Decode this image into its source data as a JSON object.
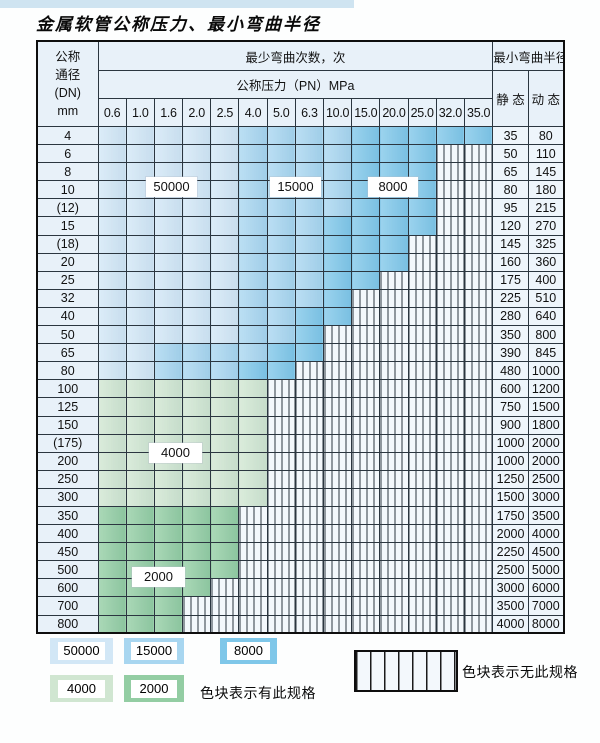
{
  "title": "金属软管公称压力、最小弯曲半径",
  "header": {
    "dn_label": "公称\n通径\n(DN)\nmm",
    "cycles_label": "最少弯曲次数，次",
    "pressure_label": "公称压力（PN）MPa",
    "radius_label": "最小弯曲半径",
    "static_label": "静 态",
    "dynamic_label": "动 态"
  },
  "chart_data": {
    "type": "heatmap",
    "title": "金属软管公称压力、最小弯曲半径",
    "xlabel": "公称压力（PN）MPa",
    "ylabel": "公称通径(DN) mm",
    "pressure_columns": [
      "0.6",
      "1.0",
      "1.6",
      "2.0",
      "2.5",
      "4.0",
      "5.0",
      "6.3",
      "10.0",
      "15.0",
      "20.0",
      "25.0",
      "32.0",
      "35.0"
    ],
    "zone_meaning": "cell zone value = 最少弯曲次数(次); none = 无此规格",
    "rows": [
      {
        "dn": "4",
        "segments": [
          [
            "z50000",
            5
          ],
          [
            "z15000",
            4
          ],
          [
            "z8000",
            5
          ]
        ],
        "static": "35",
        "dynamic": "80"
      },
      {
        "dn": "6",
        "segments": [
          [
            "z50000",
            5
          ],
          [
            "z15000",
            4
          ],
          [
            "z8000",
            3
          ],
          [
            "none",
            2
          ]
        ],
        "static": "50",
        "dynamic": "110"
      },
      {
        "dn": "8",
        "segments": [
          [
            "z50000",
            5
          ],
          [
            "z15000",
            4
          ],
          [
            "z8000",
            3
          ],
          [
            "none",
            2
          ]
        ],
        "static": "65",
        "dynamic": "145"
      },
      {
        "dn": "10",
        "segments": [
          [
            "z50000",
            5
          ],
          [
            "z15000",
            4
          ],
          [
            "z8000",
            3
          ],
          [
            "none",
            2
          ]
        ],
        "static": "80",
        "dynamic": "180"
      },
      {
        "dn": "(12)",
        "segments": [
          [
            "z50000",
            5
          ],
          [
            "z15000",
            4
          ],
          [
            "z8000",
            3
          ],
          [
            "none",
            2
          ]
        ],
        "static": "95",
        "dynamic": "215"
      },
      {
        "dn": "15",
        "segments": [
          [
            "z50000",
            5
          ],
          [
            "z15000",
            3
          ],
          [
            "z8000",
            4
          ],
          [
            "none",
            2
          ]
        ],
        "static": "120",
        "dynamic": "270"
      },
      {
        "dn": "(18)",
        "segments": [
          [
            "z50000",
            5
          ],
          [
            "z15000",
            3
          ],
          [
            "z8000",
            3
          ],
          [
            "none",
            3
          ]
        ],
        "static": "145",
        "dynamic": "325"
      },
      {
        "dn": "20",
        "segments": [
          [
            "z50000",
            5
          ],
          [
            "z15000",
            3
          ],
          [
            "z8000",
            3
          ],
          [
            "none",
            3
          ]
        ],
        "static": "160",
        "dynamic": "360"
      },
      {
        "dn": "25",
        "segments": [
          [
            "z50000",
            5
          ],
          [
            "z15000",
            3
          ],
          [
            "z8000",
            2
          ],
          [
            "none",
            4
          ]
        ],
        "static": "175",
        "dynamic": "400"
      },
      {
        "dn": "32",
        "segments": [
          [
            "z50000",
            5
          ],
          [
            "z15000",
            3
          ],
          [
            "z8000",
            1
          ],
          [
            "none",
            5
          ]
        ],
        "static": "225",
        "dynamic": "510"
      },
      {
        "dn": "40",
        "segments": [
          [
            "z50000",
            5
          ],
          [
            "z15000",
            2
          ],
          [
            "z8000",
            2
          ],
          [
            "none",
            5
          ]
        ],
        "static": "280",
        "dynamic": "640"
      },
      {
        "dn": "50",
        "segments": [
          [
            "z50000",
            5
          ],
          [
            "z15000",
            2
          ],
          [
            "z8000",
            1
          ],
          [
            "none",
            6
          ]
        ],
        "static": "350",
        "dynamic": "800"
      },
      {
        "dn": "65",
        "segments": [
          [
            "z50000",
            2
          ],
          [
            "z15000",
            4
          ],
          [
            "z8000",
            2
          ],
          [
            "none",
            6
          ]
        ],
        "static": "390",
        "dynamic": "845"
      },
      {
        "dn": "80",
        "segments": [
          [
            "z50000",
            2
          ],
          [
            "z15000",
            3
          ],
          [
            "z8000",
            2
          ],
          [
            "none",
            7
          ]
        ],
        "static": "480",
        "dynamic": "1000"
      },
      {
        "dn": "100",
        "segments": [
          [
            "z4000",
            6
          ],
          [
            "none",
            8
          ]
        ],
        "static": "600",
        "dynamic": "1200"
      },
      {
        "dn": "125",
        "segments": [
          [
            "z4000",
            6
          ],
          [
            "none",
            8
          ]
        ],
        "static": "750",
        "dynamic": "1500"
      },
      {
        "dn": "150",
        "segments": [
          [
            "z4000",
            6
          ],
          [
            "none",
            8
          ]
        ],
        "static": "900",
        "dynamic": "1800"
      },
      {
        "dn": "(175)",
        "segments": [
          [
            "z4000",
            6
          ],
          [
            "none",
            8
          ]
        ],
        "static": "1000",
        "dynamic": "2000"
      },
      {
        "dn": "200",
        "segments": [
          [
            "z4000",
            6
          ],
          [
            "none",
            8
          ]
        ],
        "static": "1000",
        "dynamic": "2000"
      },
      {
        "dn": "250",
        "segments": [
          [
            "z4000",
            6
          ],
          [
            "none",
            8
          ]
        ],
        "static": "1250",
        "dynamic": "2500"
      },
      {
        "dn": "300",
        "segments": [
          [
            "z4000",
            6
          ],
          [
            "none",
            8
          ]
        ],
        "static": "1500",
        "dynamic": "3000"
      },
      {
        "dn": "350",
        "segments": [
          [
            "z2000",
            5
          ],
          [
            "none",
            9
          ]
        ],
        "static": "1750",
        "dynamic": "3500"
      },
      {
        "dn": "400",
        "segments": [
          [
            "z2000",
            5
          ],
          [
            "none",
            9
          ]
        ],
        "static": "2000",
        "dynamic": "4000"
      },
      {
        "dn": "450",
        "segments": [
          [
            "z2000",
            5
          ],
          [
            "none",
            9
          ]
        ],
        "static": "2250",
        "dynamic": "4500"
      },
      {
        "dn": "500",
        "segments": [
          [
            "z2000",
            5
          ],
          [
            "none",
            9
          ]
        ],
        "static": "2500",
        "dynamic": "5000"
      },
      {
        "dn": "600",
        "segments": [
          [
            "z2000",
            4
          ],
          [
            "none",
            10
          ]
        ],
        "static": "3000",
        "dynamic": "6000"
      },
      {
        "dn": "700",
        "segments": [
          [
            "z2000",
            3
          ],
          [
            "none",
            11
          ]
        ],
        "static": "3500",
        "dynamic": "7000"
      },
      {
        "dn": "800",
        "segments": [
          [
            "z2000",
            3
          ],
          [
            "none",
            11
          ]
        ],
        "static": "4000",
        "dynamic": "8000"
      }
    ]
  },
  "legend": {
    "items": [
      {
        "label": "50000",
        "zone": "z50000"
      },
      {
        "label": "15000",
        "zone": "z15000"
      },
      {
        "label": "8000",
        "zone": "z8000"
      },
      {
        "label": "4000",
        "zone": "z4000"
      },
      {
        "label": "2000",
        "zone": "z2000"
      }
    ],
    "present_note": "色块表示有此规格",
    "absent_note": "色块表示无此规格"
  },
  "colors": {
    "z50000": "#d2e7f6",
    "z15000": "#a8d6f0",
    "z8000": "#7fc7e9",
    "z4000": "#d0e6d1",
    "z2000": "#93cda3",
    "grid": "#2b3640",
    "header_bg": "#e8f1f9",
    "value_bg": "#eef5fb",
    "hatch_bg": "#f3f8fc",
    "strip": "#cfe4f1"
  }
}
